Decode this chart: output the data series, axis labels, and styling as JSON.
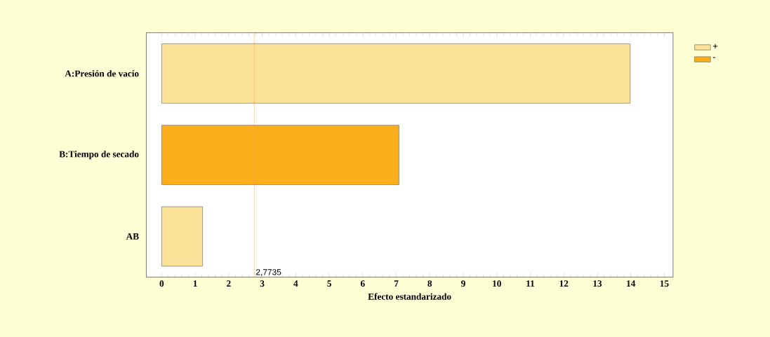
{
  "chart_data": {
    "type": "bar",
    "orientation": "horizontal",
    "xlabel": "Efecto estandarizado",
    "categories": [
      "A:Presión de vacío",
      "B:Tiempo de secado",
      "AB"
    ],
    "series": [
      {
        "name": "+",
        "color": "#fce198",
        "values": [
          13.98,
          null,
          1.22
        ]
      },
      {
        "name": "-",
        "color": "#fdae1c",
        "values": [
          null,
          7.08,
          null
        ]
      }
    ],
    "xlim": [
      -0.46,
      15.26
    ],
    "xticks": [
      0,
      1,
      2,
      3,
      4,
      5,
      6,
      7,
      8,
      9,
      10,
      11,
      12,
      13,
      14,
      15
    ],
    "ref_lines": [
      {
        "axis": "x",
        "value": 2.7735,
        "label": "2,7735",
        "color": "#f4a050"
      }
    ],
    "legend": "top right",
    "grid": false
  }
}
